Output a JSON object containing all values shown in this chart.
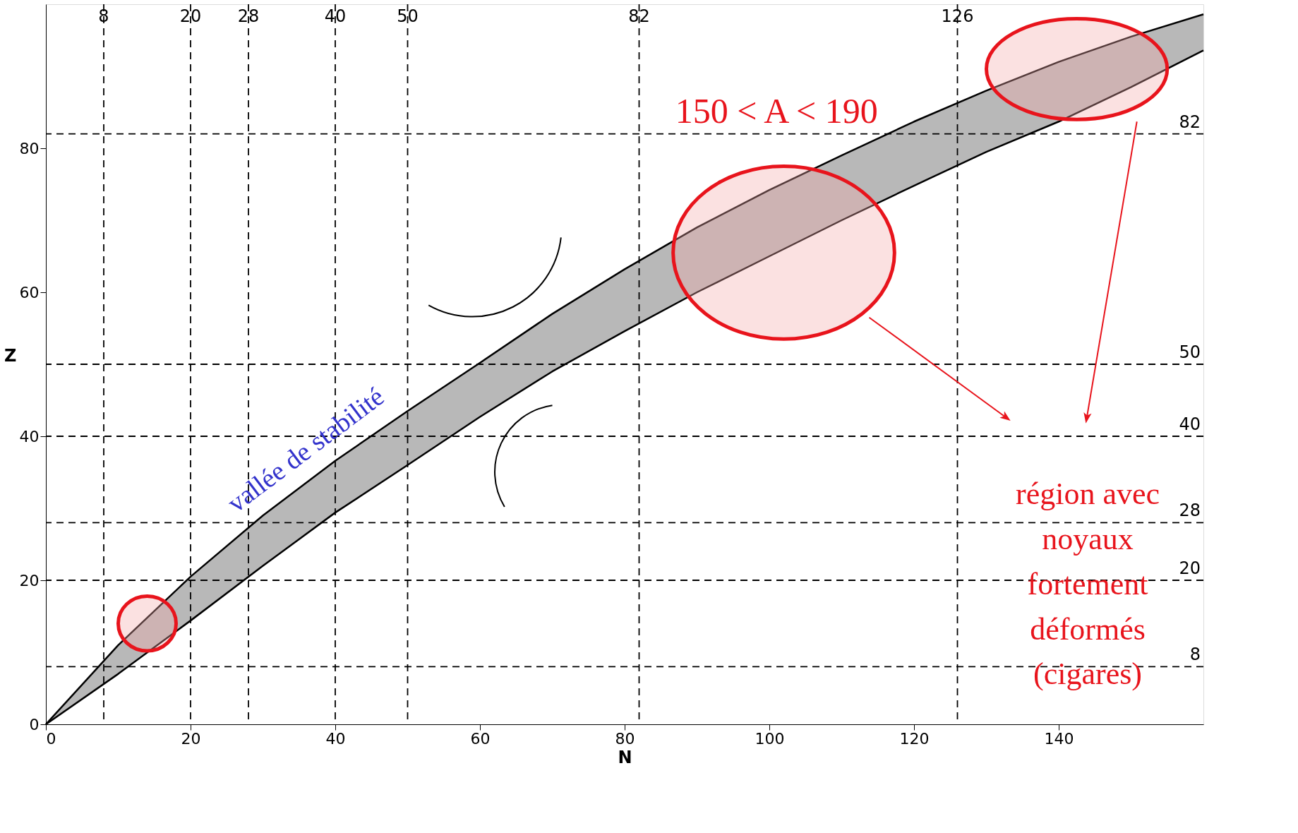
{
  "chart_data": {
    "type": "line",
    "xlabel": "N",
    "ylabel": "Z",
    "xlim": [
      0,
      160
    ],
    "ylim": [
      0,
      100
    ],
    "xticks": [
      0,
      20,
      40,
      60,
      80,
      100,
      120,
      140
    ],
    "yticks": [
      0,
      20,
      40,
      60,
      80
    ],
    "grid": false,
    "series": [
      {
        "color": "#000000",
        "x": [
          0,
          10,
          20,
          30,
          40,
          50,
          60,
          70,
          80,
          90,
          100,
          110,
          120,
          130,
          140,
          150,
          160
        ],
        "values": [
          0,
          11,
          20.5,
          29,
          36.6,
          43.5,
          50.2,
          57,
          63.2,
          69,
          74.2,
          79,
          83.7,
          88,
          92,
          95.5,
          98.6
        ]
      },
      {
        "color": "#000000",
        "x": [
          0,
          10,
          20,
          30,
          40,
          50,
          60,
          70,
          80,
          90,
          100,
          110,
          120,
          130,
          140,
          150,
          160
        ],
        "values": [
          0,
          7,
          14.4,
          22,
          29.4,
          36,
          42.7,
          49,
          54.6,
          60,
          65,
          70,
          74.8,
          79.5,
          83.7,
          88.5,
          93.6
        ]
      }
    ],
    "ref_lines": [
      {
        "axis": "x",
        "value": 8,
        "label": "8",
        "line_style": "dashed"
      },
      {
        "axis": "x",
        "value": 20,
        "label": "20",
        "line_style": "dashed"
      },
      {
        "axis": "x",
        "value": 28,
        "label": "28",
        "line_style": "dashed"
      },
      {
        "axis": "x",
        "value": 40,
        "label": "40",
        "line_style": "dashed"
      },
      {
        "axis": "x",
        "value": 50,
        "label": "50",
        "line_style": "dashed"
      },
      {
        "axis": "x",
        "value": 82,
        "label": "82",
        "line_style": "dashed"
      },
      {
        "axis": "x",
        "value": 126,
        "label": "126",
        "line_style": "dashed"
      },
      {
        "axis": "y",
        "value": 8,
        "label": "8",
        "line_style": "dashed"
      },
      {
        "axis": "y",
        "value": 20,
        "label": "20",
        "line_style": "dashed"
      },
      {
        "axis": "y",
        "value": 28,
        "label": "28",
        "line_style": "dashed"
      },
      {
        "axis": "y",
        "value": 40,
        "label": "40",
        "line_style": "dashed"
      },
      {
        "axis": "y",
        "value": 50,
        "label": "50",
        "line_style": "dashed"
      },
      {
        "axis": "y",
        "value": 82,
        "label": "82",
        "line_style": "dashed"
      }
    ],
    "annotations": [
      "150 < A < 190",
      "vallée de stabilité",
      "région avec noyaux fortement déformés (cigares)"
    ]
  }
}
